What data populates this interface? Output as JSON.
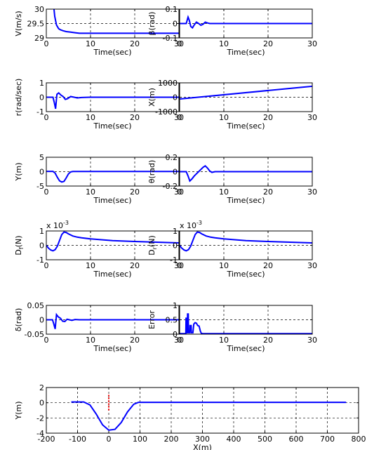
{
  "chart_data": [
    {
      "type": "line",
      "xlabel": "Time(sec)",
      "ylabel": "V(m/s)",
      "xlim": [
        0,
        30
      ],
      "ylim": [
        29,
        30
      ],
      "xticks": [
        "0",
        "10",
        "20",
        "30"
      ],
      "yticks": [
        "29",
        "29.5",
        "30"
      ],
      "grid": true,
      "series": [
        {
          "color": "#0000ff",
          "x": [
            0,
            1.6,
            1.9,
            2.3,
            2.8,
            3.2,
            3.8,
            4.5,
            5.5,
            6.5,
            7.5,
            10,
            15,
            20,
            25,
            30
          ],
          "y": [
            30.2,
            30.2,
            29.75,
            29.45,
            29.32,
            29.28,
            29.25,
            29.22,
            29.2,
            29.18,
            29.16,
            29.16,
            29.16,
            29.16,
            29.16,
            29.16
          ]
        }
      ]
    },
    {
      "type": "line",
      "xlabel": "Time(sec)",
      "ylabel": "β(rad)",
      "xlim": [
        0,
        30
      ],
      "ylim": [
        -0.1,
        0.1
      ],
      "xticks": [
        "0",
        "10",
        "20",
        "30"
      ],
      "yticks": [
        "-0.1",
        "0",
        "0.1"
      ],
      "grid": true,
      "series": [
        {
          "color": "#0000ff",
          "x": [
            0,
            1.5,
            1.9,
            2.2,
            2.5,
            2.9,
            3.3,
            3.8,
            4.3,
            4.8,
            5.3,
            5.8,
            6.3,
            6.8,
            7.5,
            30
          ],
          "y": [
            0,
            0,
            0.045,
            0.02,
            -0.02,
            -0.03,
            -0.01,
            0.01,
            0.0,
            -0.012,
            -0.005,
            0.01,
            0.004,
            0,
            0,
            0
          ]
        }
      ]
    },
    {
      "type": "line",
      "xlabel": "Time(sec)",
      "ylabel": "r(rad/sec)",
      "xlim": [
        0,
        30
      ],
      "ylim": [
        -1,
        1
      ],
      "xticks": [
        "0",
        "10",
        "20",
        "30"
      ],
      "yticks": [
        "-1",
        "0",
        "1"
      ],
      "grid": true,
      "series": [
        {
          "color": "#0000ff",
          "x": [
            0,
            1.5,
            1.8,
            2.1,
            2.4,
            2.8,
            3.3,
            3.8,
            4.3,
            4.8,
            5.5,
            6.3,
            7,
            8,
            10,
            15,
            20,
            25,
            30
          ],
          "y": [
            0,
            0,
            -0.35,
            -0.8,
            0.2,
            0.3,
            0.15,
            0.05,
            -0.15,
            -0.1,
            0.05,
            0.0,
            -0.05,
            -0.02,
            0,
            0,
            0,
            0,
            0
          ]
        }
      ]
    },
    {
      "type": "line",
      "xlabel": "Time(sec)",
      "ylabel": "X(m)",
      "xlim": [
        0,
        30
      ],
      "ylim": [
        -1000,
        1000
      ],
      "xticks": [
        "0",
        "10",
        "20",
        "30"
      ],
      "yticks": [
        "-1000",
        "0",
        "1000"
      ],
      "grid": true,
      "series": [
        {
          "color": "#0000ff",
          "x": [
            0,
            30
          ],
          "y": [
            -120,
            760
          ]
        }
      ]
    },
    {
      "type": "line",
      "xlabel": "Time(sec)",
      "ylabel": "Y(m)",
      "xlim": [
        0,
        30
      ],
      "ylim": [
        -5,
        5
      ],
      "xticks": [
        "0",
        "10",
        "20",
        "30"
      ],
      "yticks": [
        "-5",
        "0",
        "5"
      ],
      "grid": true,
      "series": [
        {
          "color": "#0000ff",
          "x": [
            0,
            1.5,
            2,
            2.5,
            3,
            3.5,
            4,
            4.5,
            5,
            5.5,
            6,
            8,
            15,
            20,
            25,
            30
          ],
          "y": [
            0.1,
            0.1,
            -0.5,
            -2,
            -3.2,
            -3.6,
            -3.4,
            -2.2,
            -0.8,
            -0.1,
            0.05,
            0.05,
            0.05,
            0.05,
            0.05,
            0.05
          ]
        }
      ]
    },
    {
      "type": "line",
      "xlabel": "Time(sec)",
      "ylabel": "θ(rad)",
      "xlim": [
        0,
        30
      ],
      "ylim": [
        -0.2,
        0.2
      ],
      "xticks": [
        "0",
        "10",
        "20",
        "30"
      ],
      "yticks": [
        "-0.2",
        "0",
        "0.2"
      ],
      "grid": true,
      "series": [
        {
          "color": "#0000ff",
          "x": [
            0,
            1.5,
            1.9,
            2.3,
            2.8,
            3.3,
            3.8,
            4.3,
            4.8,
            5.3,
            5.8,
            6.3,
            6.8,
            7.3,
            8,
            10,
            30
          ],
          "y": [
            0,
            0,
            -0.06,
            -0.13,
            -0.1,
            -0.06,
            -0.03,
            0.0,
            0.03,
            0.06,
            0.08,
            0.05,
            0.01,
            -0.01,
            0,
            0,
            0
          ]
        }
      ]
    },
    {
      "type": "line",
      "xlabel": "Time(sec)",
      "ylabel": "D_f(N)",
      "multiplier": "x 10^-3",
      "xlim": [
        0,
        30
      ],
      "ylim": [
        -1,
        1
      ],
      "xticks": [
        "0",
        "10",
        "20",
        "30"
      ],
      "yticks": [
        "-1",
        "0",
        "1"
      ],
      "grid": true,
      "series": [
        {
          "color": "#0000ff",
          "x": [
            0,
            0.5,
            1,
            1.5,
            2,
            2.5,
            3,
            3.5,
            4,
            4.5,
            5,
            6,
            7,
            8,
            10,
            12,
            15,
            20,
            25,
            30
          ],
          "y": [
            0,
            -0.2,
            -0.32,
            -0.38,
            -0.3,
            -0.05,
            0.35,
            0.75,
            0.92,
            0.9,
            0.8,
            0.65,
            0.57,
            0.52,
            0.45,
            0.4,
            0.33,
            0.27,
            0.22,
            0.17
          ]
        }
      ]
    },
    {
      "type": "line",
      "xlabel": "Time(sec)",
      "ylabel": "D_r(N)",
      "multiplier": "x 10^-3",
      "xlim": [
        0,
        30
      ],
      "ylim": [
        -1,
        1
      ],
      "xticks": [
        "0",
        "10",
        "20",
        "30"
      ],
      "yticks": [
        "-1",
        "0",
        "1"
      ],
      "grid": true,
      "series": [
        {
          "color": "#0000ff",
          "x": [
            0,
            0.5,
            1,
            1.5,
            2,
            2.5,
            3,
            3.5,
            4,
            4.5,
            5,
            6,
            7,
            8,
            10,
            12,
            15,
            20,
            25,
            30
          ],
          "y": [
            0,
            -0.2,
            -0.32,
            -0.38,
            -0.3,
            -0.05,
            0.35,
            0.75,
            0.92,
            0.9,
            0.8,
            0.65,
            0.57,
            0.52,
            0.45,
            0.4,
            0.33,
            0.27,
            0.22,
            0.17
          ]
        }
      ]
    },
    {
      "type": "line",
      "xlabel": "Time(sec)",
      "ylabel": "δ(rad)",
      "xlim": [
        0,
        30
      ],
      "ylim": [
        -0.05,
        0.05
      ],
      "xticks": [
        "0",
        "10",
        "20",
        "30"
      ],
      "yticks": [
        "-0.05",
        "0",
        "0.05"
      ],
      "grid": true,
      "series": [
        {
          "color": "#0000ff",
          "x": [
            0,
            1.4,
            1.7,
            2.0,
            2.3,
            2.7,
            3.2,
            3.7,
            4.2,
            4.7,
            5.2,
            5.8,
            6.5,
            7.5,
            10,
            30
          ],
          "y": [
            0,
            0,
            -0.015,
            -0.032,
            0.018,
            0.01,
            0.005,
            -0.005,
            -0.006,
            0.002,
            0.0,
            -0.002,
            0.001,
            0,
            0,
            0
          ]
        }
      ]
    },
    {
      "type": "line",
      "xlabel": "Time(sec)",
      "ylabel": "Error",
      "xlim": [
        0,
        30
      ],
      "ylim": [
        0,
        1
      ],
      "xticks": [
        "0",
        "10",
        "20",
        "30"
      ],
      "yticks": [
        "0",
        "0.5",
        "1"
      ],
      "grid": true,
      "series": [
        {
          "color": "#0000ff",
          "x": [
            0,
            1.4,
            1.45,
            1.55,
            1.6,
            1.75,
            1.8,
            1.95,
            2.0,
            2.3,
            2.35,
            2.6,
            2.65,
            3.0,
            3.2,
            3.5,
            3.8,
            4.1,
            4.4,
            4.7,
            4.9,
            5.2,
            30
          ],
          "y": [
            0.02,
            0.02,
            0.55,
            0.55,
            0.05,
            0.05,
            0.7,
            0.7,
            0.05,
            0.05,
            0.3,
            0.3,
            0.05,
            0.05,
            0.35,
            0.4,
            0.38,
            0.3,
            0.28,
            0.1,
            0.03,
            0.02,
            0.02
          ]
        }
      ]
    },
    {
      "type": "line",
      "xlabel": "X(m)",
      "ylabel": "Y(m)",
      "xlim": [
        -200,
        800
      ],
      "ylim": [
        -4,
        2
      ],
      "xticks": [
        "-200",
        "-100",
        "0",
        "100",
        "200",
        "300",
        "400",
        "500",
        "600",
        "700",
        "800"
      ],
      "yticks": [
        "-4",
        "-2",
        "0",
        "2"
      ],
      "grid": true,
      "series": [
        {
          "color": "#0000ff",
          "x": [
            -120,
            -80,
            -60,
            -40,
            -20,
            0,
            20,
            40,
            60,
            80,
            95,
            110,
            130,
            760
          ],
          "y": [
            0.1,
            0.1,
            -0.3,
            -1.5,
            -2.9,
            -3.6,
            -3.5,
            -2.6,
            -1.2,
            -0.2,
            0.05,
            0.05,
            0.05,
            0.05
          ]
        },
        {
          "color": "#ff0000",
          "dashed": true,
          "x": [
            0,
            0
          ],
          "y": [
            -1.0,
            1.1
          ]
        }
      ]
    }
  ]
}
